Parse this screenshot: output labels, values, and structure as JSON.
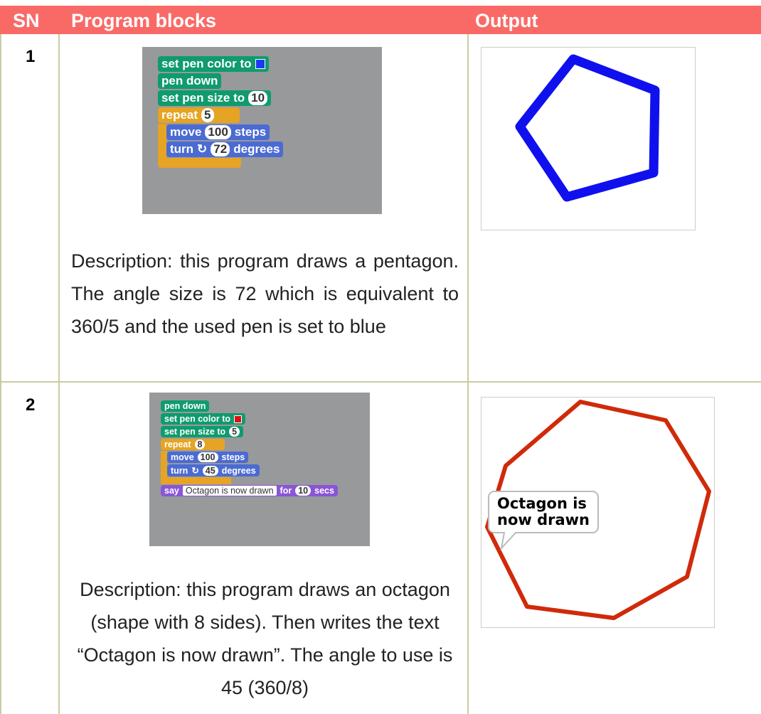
{
  "header": {
    "sn": "SN",
    "program": "Program blocks",
    "output": "Output"
  },
  "rows": [
    {
      "sn": "1",
      "blocks": [
        [
          "set pen color to"
        ],
        [
          "pen down"
        ],
        [
          "set pen size to",
          "10"
        ],
        [
          "repeat",
          "5"
        ],
        [
          "move",
          "100",
          "steps"
        ],
        [
          "turn",
          "72",
          "degrees"
        ]
      ],
      "description": "Description: this program draws a pentagon. The angle size is 72 which is equivalent to 360/5 and the used pen is set to blue"
    },
    {
      "sn": "2",
      "blocks": [
        [
          "pen down"
        ],
        [
          "set pen color to"
        ],
        [
          "set pen size to",
          "5"
        ],
        [
          "repeat",
          "8"
        ],
        [
          "move",
          "100",
          "steps"
        ],
        [
          "turn",
          "45",
          "degrees"
        ],
        [
          "say",
          "Octagon is now drawn",
          "for",
          "10",
          "secs"
        ]
      ],
      "description": "Description: this program draws an octagon (shape with 8 sides). Then writes the text “Octagon is now drawn”. The angle to use is 45 (360/8)",
      "speech": "Octagon is now drawn"
    }
  ]
}
